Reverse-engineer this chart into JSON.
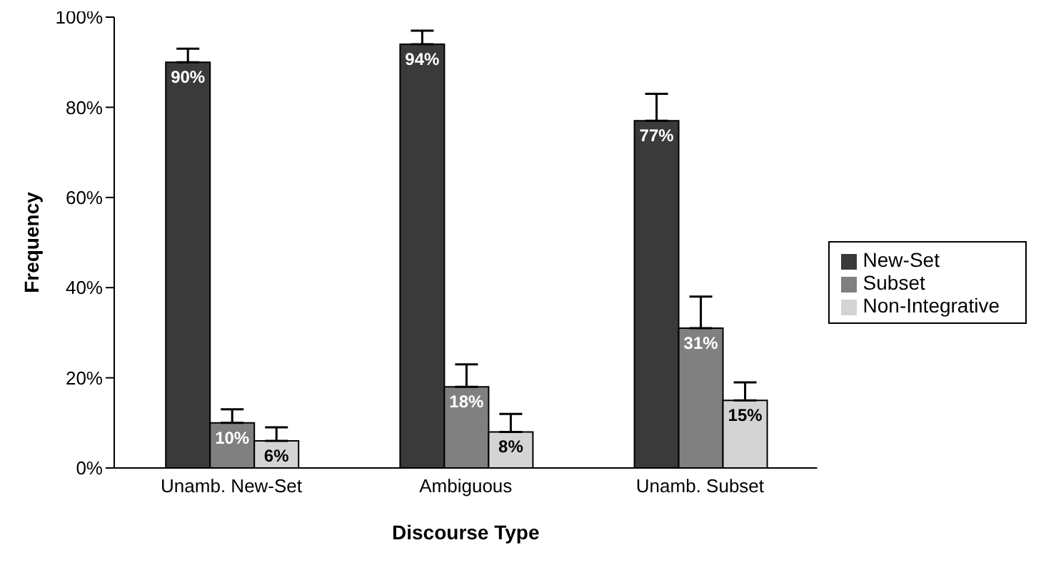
{
  "chart_data": {
    "type": "bar",
    "xlabel": "Discourse Type",
    "ylabel": "Frequency",
    "categories": [
      "Unamb. New-Set",
      "Ambiguous",
      "Unamb. Subset"
    ],
    "series": [
      {
        "name": "New-Set",
        "color": "#3a3a3a",
        "values": [
          90,
          94,
          77
        ],
        "errors": [
          [
            90,
            93
          ],
          [
            94,
            97
          ],
          [
            77,
            83
          ]
        ],
        "value_labels": [
          "90%",
          "94%",
          "77%"
        ]
      },
      {
        "name": "Subset",
        "color": "#808080",
        "values": [
          10,
          18,
          31
        ],
        "errors": [
          [
            10,
            13
          ],
          [
            18,
            23
          ],
          [
            31,
            38
          ]
        ],
        "value_labels": [
          "10%",
          "18%",
          "31%"
        ]
      },
      {
        "name": "Non-Integrative",
        "color": "#d4d4d4",
        "values": [
          6,
          8,
          15
        ],
        "errors": [
          [
            6,
            9
          ],
          [
            8,
            12
          ],
          [
            15,
            19
          ]
        ],
        "value_labels": [
          "6%",
          "8%",
          "15%"
        ]
      }
    ],
    "ylim": [
      0,
      100
    ],
    "yticks": [
      {
        "value": 0,
        "label": "0%"
      },
      {
        "value": 20,
        "label": "20%"
      },
      {
        "value": 40,
        "label": "40%"
      },
      {
        "value": 60,
        "label": "60%"
      },
      {
        "value": 80,
        "label": "80%"
      },
      {
        "value": 100,
        "label": "100%"
      }
    ],
    "legend": "right",
    "grid": false
  }
}
